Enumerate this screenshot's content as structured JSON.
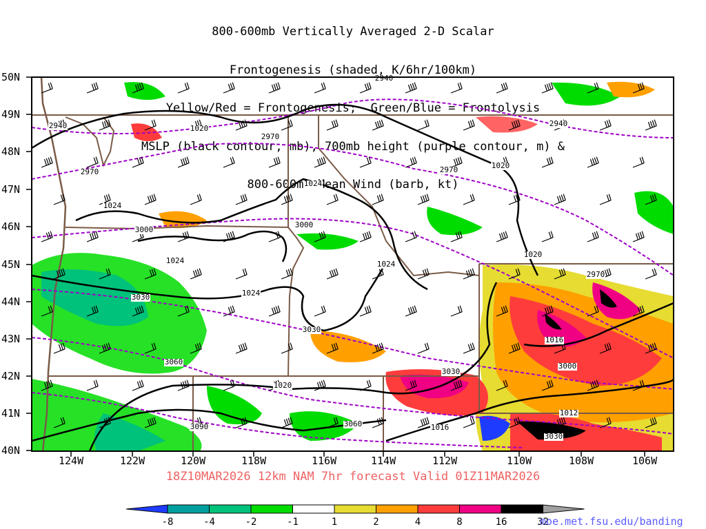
{
  "title": {
    "line1": "800-600mb Vertically Averaged 2-D Scalar",
    "line2": "Frontogenesis (shaded, K/6hr/100km)",
    "line3": "Yellow/Red = Frontogenesis;  Green/Blue = Frontolysis",
    "line4": "MSLP (black contour, mb), 700mb height (purple contour, m) &",
    "line5": "800-600mb Mean Wind (barb, kt)"
  },
  "valid_line": "18Z10MAR2026 12km NAM 7hr forecast Valid 01Z11MAR2026",
  "credit": "moe.met.fsu.edu/banding",
  "axes": {
    "lat_labels": [
      "50N",
      "49N",
      "48N",
      "47N",
      "46N",
      "45N",
      "44N",
      "43N",
      "42N",
      "41N",
      "40N"
    ],
    "lon_labels": [
      "124W",
      "122W",
      "120W",
      "118W",
      "116W",
      "114W",
      "112W",
      "110W",
      "108W",
      "106W"
    ]
  },
  "contours": {
    "mslp_labels": [
      "1020",
      "1024",
      "1024",
      "1024",
      "1024",
      "1024",
      "1020",
      "1020",
      "1016",
      "1012",
      "1016",
      "1020"
    ],
    "height_labels": [
      "2940",
      "2940",
      "2940",
      "2970",
      "2970",
      "2970",
      "2970",
      "3000",
      "3000",
      "3000",
      "3030",
      "3030",
      "3030",
      "3060",
      "3060",
      "3090",
      "3030"
    ]
  },
  "colorbar": {
    "labels": [
      "-8",
      "-4",
      "-2",
      "-1",
      "1",
      "2",
      "4",
      "8",
      "16",
      "32"
    ],
    "colors": [
      "#1e3cff",
      "#00a0a0",
      "#00c27a",
      "#00dc00",
      "#ffffff",
      "#e6dc32",
      "#ffa000",
      "#ff3c3c",
      "#f00082",
      "#000000",
      "#a0a0a0"
    ]
  },
  "colors": {
    "mslp": "#000000",
    "height": "#a000c8",
    "borders": "#7a5a46",
    "valid_text": "#ee6262",
    "credit": "#5a5aff"
  }
}
